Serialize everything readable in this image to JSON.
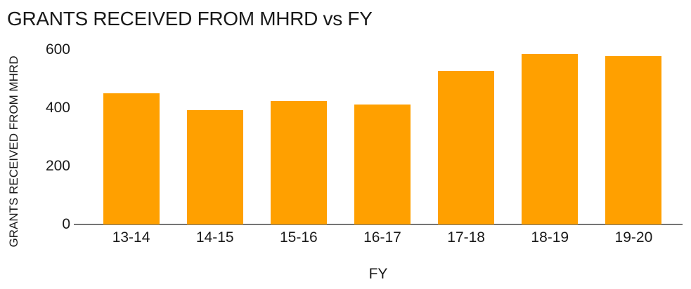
{
  "colors": {
    "bar": "#FFA000",
    "axis_line": "#757575",
    "text": "#1a1a1a"
  },
  "chart_data": {
    "type": "bar",
    "title": "GRANTS RECEIVED FROM MHRD vs FY",
    "xlabel": "FY",
    "ylabel": "GRANTS RECEIVED FROM MHRD",
    "categories": [
      "13-14",
      "14-15",
      "15-16",
      "16-17",
      "17-18",
      "18-19",
      "19-20"
    ],
    "values": [
      450,
      393,
      425,
      413,
      527,
      585,
      578
    ],
    "yticks": [
      0,
      200,
      400,
      600
    ],
    "ylim": [
      0,
      600
    ],
    "grid": false,
    "legend": false,
    "bar_color": "#FFA000",
    "background": "#ffffff"
  }
}
